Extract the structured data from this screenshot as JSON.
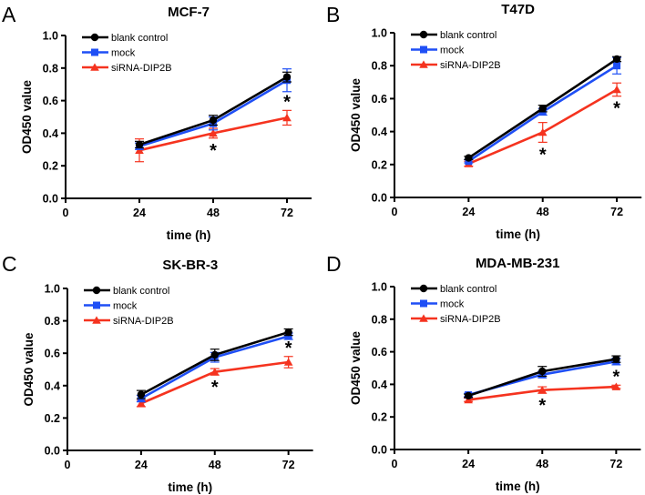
{
  "chart_data": [
    {
      "type": "line",
      "panel_label": "A",
      "title": "MCF-7",
      "xlabel": "time (h)",
      "ylabel": "OD450 value",
      "x": [
        24,
        48,
        72
      ],
      "xticks": [
        "0",
        "24",
        "48",
        "72"
      ],
      "yticks": [
        "0.0",
        "0.2",
        "0.4",
        "0.6",
        "0.8",
        "1.0"
      ],
      "ylim": [
        0,
        1.0
      ],
      "legend_position": "top-left",
      "series": [
        {
          "name": "blank control",
          "color": "#000000",
          "marker": "circle",
          "values": [
            0.33,
            0.48,
            0.745
          ],
          "errors": [
            0.02,
            0.03,
            0.03
          ]
        },
        {
          "name": "mock",
          "color": "#1f4ff5",
          "marker": "square",
          "values": [
            0.32,
            0.46,
            0.725
          ],
          "errors": [
            0.02,
            0.04,
            0.07
          ]
        },
        {
          "name": "siRNA-DIP2B",
          "color": "#f5331f",
          "marker": "triangle",
          "values": [
            0.295,
            0.4,
            0.495
          ],
          "errors": [
            0.07,
            0.03,
            0.045
          ]
        }
      ],
      "annotations": [
        {
          "text": "*",
          "x": 48,
          "side": "below"
        },
        {
          "text": "*",
          "x": 72,
          "side": "above"
        }
      ]
    },
    {
      "type": "line",
      "panel_label": "B",
      "title": "T47D",
      "xlabel": "time (h)",
      "ylabel": "OD450 value",
      "x": [
        24,
        48,
        72
      ],
      "xticks": [
        "0",
        "24",
        "48",
        "72"
      ],
      "yticks": [
        "0.0",
        "0.2",
        "0.4",
        "0.6",
        "0.8",
        "1.0"
      ],
      "ylim": [
        0,
        1.0
      ],
      "legend_position": "top-left",
      "series": [
        {
          "name": "blank control",
          "color": "#000000",
          "marker": "circle",
          "values": [
            0.24,
            0.54,
            0.84
          ],
          "errors": [
            0.01,
            0.02,
            0.015
          ]
        },
        {
          "name": "mock",
          "color": "#1f4ff5",
          "marker": "square",
          "values": [
            0.22,
            0.52,
            0.8
          ],
          "errors": [
            0.01,
            0.02,
            0.05
          ]
        },
        {
          "name": "siRNA-DIP2B",
          "color": "#f5331f",
          "marker": "triangle",
          "values": [
            0.205,
            0.395,
            0.655
          ],
          "errors": [
            0.015,
            0.06,
            0.04
          ]
        }
      ],
      "annotations": [
        {
          "text": "*",
          "x": 48,
          "side": "below"
        },
        {
          "text": "*",
          "x": 72,
          "side": "below"
        }
      ]
    },
    {
      "type": "line",
      "panel_label": "C",
      "title": "SK-BR-3",
      "xlabel": "time (h)",
      "ylabel": "OD450 value",
      "x": [
        24,
        48,
        72
      ],
      "xticks": [
        "0",
        "24",
        "48",
        "72"
      ],
      "yticks": [
        "0.0",
        "0.2",
        "0.4",
        "0.6",
        "0.8",
        "1.0"
      ],
      "ylim": [
        0,
        1.0
      ],
      "legend_position": "top-left",
      "series": [
        {
          "name": "blank control",
          "color": "#000000",
          "marker": "circle",
          "values": [
            0.345,
            0.59,
            0.73
          ],
          "errors": [
            0.025,
            0.035,
            0.02
          ]
        },
        {
          "name": "mock",
          "color": "#1f4ff5",
          "marker": "square",
          "values": [
            0.32,
            0.575,
            0.705
          ],
          "errors": [
            0.02,
            0.03,
            0.02
          ]
        },
        {
          "name": "siRNA-DIP2B",
          "color": "#f5331f",
          "marker": "triangle",
          "values": [
            0.29,
            0.485,
            0.545
          ],
          "errors": [
            0.02,
            0.02,
            0.035
          ]
        }
      ],
      "annotations": [
        {
          "text": "*",
          "x": 48,
          "side": "below"
        },
        {
          "text": "*",
          "x": 72,
          "side": "above"
        }
      ]
    },
    {
      "type": "line",
      "panel_label": "D",
      "title": "MDA-MB-231",
      "xlabel": "time (h)",
      "ylabel": "OD450 value",
      "x": [
        24,
        48,
        72
      ],
      "xticks": [
        "0",
        "24",
        "48",
        "72"
      ],
      "yticks": [
        "0.0",
        "0.2",
        "0.4",
        "0.6",
        "0.8",
        "1.0"
      ],
      "ylim": [
        0,
        1.0
      ],
      "legend_position": "top-left",
      "series": [
        {
          "name": "blank control",
          "color": "#000000",
          "marker": "circle",
          "values": [
            0.33,
            0.48,
            0.555
          ],
          "errors": [
            0.01,
            0.03,
            0.02
          ]
        },
        {
          "name": "mock",
          "color": "#1f4ff5",
          "marker": "square",
          "values": [
            0.335,
            0.46,
            0.54
          ],
          "errors": [
            0.01,
            0.02,
            0.02
          ]
        },
        {
          "name": "siRNA-DIP2B",
          "color": "#f5331f",
          "marker": "triangle",
          "values": [
            0.305,
            0.365,
            0.385
          ],
          "errors": [
            0.01,
            0.02,
            0.01
          ]
        }
      ],
      "annotations": [
        {
          "text": "*",
          "x": 48,
          "side": "below"
        },
        {
          "text": "*",
          "x": 72,
          "side": "above"
        }
      ]
    }
  ]
}
